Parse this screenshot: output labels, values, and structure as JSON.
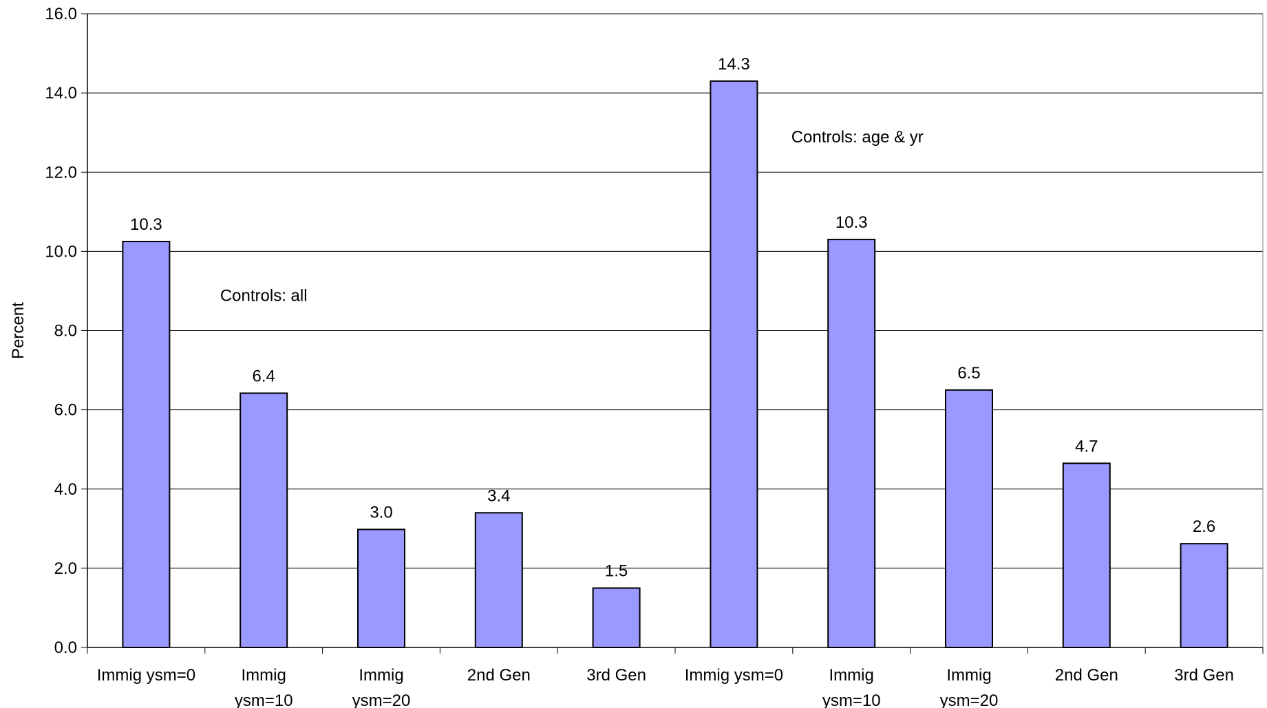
{
  "chart_data": {
    "type": "bar",
    "title": "",
    "xlabel": "",
    "ylabel": "Percent",
    "ylim": [
      0,
      16
    ],
    "yticks": [
      "0.0",
      "2.0",
      "4.0",
      "6.0",
      "8.0",
      "10.0",
      "12.0",
      "14.0",
      "16.0"
    ],
    "grid": true,
    "legend": "none",
    "bar_color": "#9999ff",
    "categories": [
      [
        "Immig ysm=0"
      ],
      [
        "Immig",
        "ysm=10"
      ],
      [
        "Immig",
        "ysm=20"
      ],
      [
        "2nd Gen"
      ],
      [
        "3rd Gen"
      ],
      [
        "Immig ysm=0"
      ],
      [
        "Immig",
        "ysm=10"
      ],
      [
        "Immig",
        "ysm=20"
      ],
      [
        "2nd Gen"
      ],
      [
        "3rd Gen"
      ]
    ],
    "values": [
      10.25,
      6.42,
      2.98,
      3.4,
      1.5,
      14.3,
      10.3,
      6.5,
      4.65,
      2.62
    ],
    "data_labels": [
      "10.3",
      "6.4",
      "3.0",
      "3.4",
      "1.5",
      "14.3",
      "10.3",
      "6.5",
      "4.7",
      "2.6"
    ],
    "annotations": [
      {
        "text": "Controls: all",
        "x_category": 1.5,
        "y": 8.75
      },
      {
        "text": "Controls: age & yr",
        "x_category": 6.55,
        "y": 12.75
      }
    ]
  }
}
